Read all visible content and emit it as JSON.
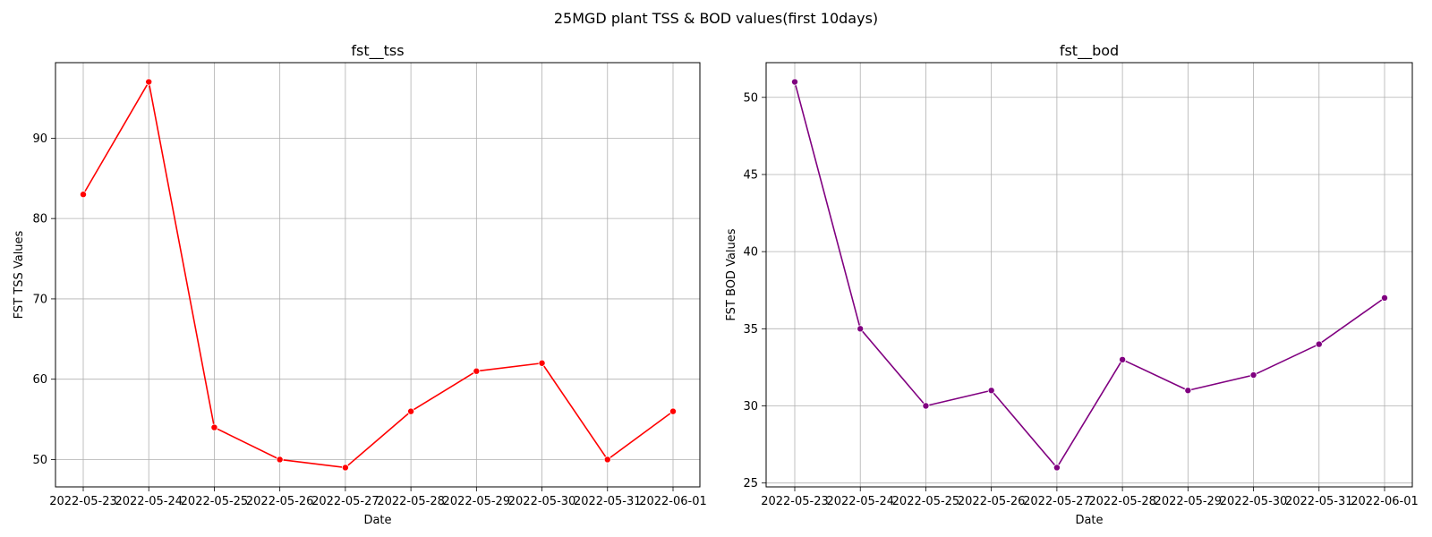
{
  "figure": {
    "title": "25MGD plant TSS & BOD values(first 10days)"
  },
  "chart_data": [
    {
      "type": "line",
      "title": "fst__tss",
      "xlabel": "Date",
      "ylabel": "FST TSS Values",
      "x": [
        "2022-05-23",
        "2022-05-24",
        "2022-05-25",
        "2022-05-26",
        "2022-05-27",
        "2022-05-28",
        "2022-05-29",
        "2022-05-30",
        "2022-05-31",
        "2022-06-01"
      ],
      "series": [
        {
          "values": [
            83,
            97,
            54,
            50,
            49,
            56,
            61,
            62,
            50,
            56
          ],
          "color": "#ff0000"
        }
      ],
      "yticks": [
        50,
        60,
        70,
        80,
        90
      ],
      "ylim": [
        46.6,
        99.4
      ],
      "grid": true,
      "marker": "circle"
    },
    {
      "type": "line",
      "title": "fst__bod",
      "xlabel": "Date",
      "ylabel": "FST BOD Values",
      "x": [
        "2022-05-23",
        "2022-05-24",
        "2022-05-25",
        "2022-05-26",
        "2022-05-27",
        "2022-05-28",
        "2022-05-29",
        "2022-05-30",
        "2022-05-31",
        "2022-06-01"
      ],
      "series": [
        {
          "values": [
            51,
            35,
            30,
            31,
            26,
            33,
            31,
            32,
            34,
            37
          ],
          "color": "#800080"
        }
      ],
      "yticks": [
        25,
        30,
        35,
        40,
        45,
        50
      ],
      "ylim": [
        24.75,
        52.25
      ],
      "grid": true,
      "marker": "circle"
    }
  ]
}
